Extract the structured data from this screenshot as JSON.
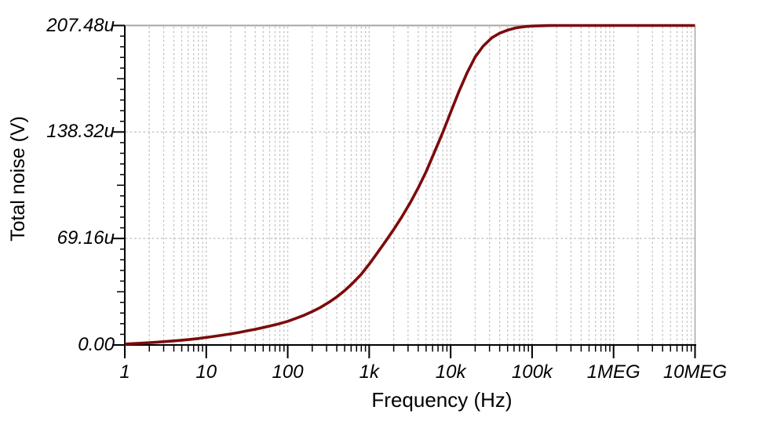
{
  "window": {
    "background": "#ffffff"
  },
  "colors": {
    "curve": "#7c0b0b",
    "grid": "#c3c3c3",
    "border": "#a6a6a6",
    "axis": "#000000",
    "text": "#000000",
    "background": "#ffffff"
  },
  "chart_data": {
    "type": "line",
    "title": "",
    "xlabel": "Frequency (Hz)",
    "ylabel": "Total noise (V)",
    "x_scale": "log",
    "y_scale": "linear",
    "xlim": [
      1,
      10000000
    ],
    "ylim_uV": [
      0,
      207.48
    ],
    "grid": {
      "vertical_log_minor": true,
      "horizontal_major": true,
      "style": "dashed",
      "shown": true
    },
    "legend": "none",
    "x_ticks": [
      {
        "value": 1,
        "label": "1"
      },
      {
        "value": 10,
        "label": "10"
      },
      {
        "value": 100,
        "label": "100"
      },
      {
        "value": 1000,
        "label": "1k"
      },
      {
        "value": 10000,
        "label": "10k"
      },
      {
        "value": 100000,
        "label": "100k"
      },
      {
        "value": 1000000,
        "label": "1MEG"
      },
      {
        "value": 10000000,
        "label": "10MEG"
      }
    ],
    "y_ticks": [
      {
        "value_uV": 0,
        "label": "0.00"
      },
      {
        "value_uV": 69.16,
        "label": "69.16u"
      },
      {
        "value_uV": 138.32,
        "label": "138.32u"
      },
      {
        "value_uV": 207.48,
        "label": "207.48u"
      }
    ],
    "series": [
      {
        "name": "Total noise",
        "color": "#7c0b0b",
        "points_f_uV": [
          [
            1,
            0.6
          ],
          [
            1.3,
            0.9
          ],
          [
            1.6,
            1.15
          ],
          [
            2,
            1.5
          ],
          [
            2.5,
            1.85
          ],
          [
            3.2,
            2.25
          ],
          [
            4,
            2.65
          ],
          [
            5,
            3.1
          ],
          [
            6.3,
            3.6
          ],
          [
            8,
            4.2
          ],
          [
            10,
            4.9
          ],
          [
            12.5,
            5.6
          ],
          [
            16,
            6.4
          ],
          [
            20,
            7.2
          ],
          [
            25,
            8.1
          ],
          [
            32,
            9.2
          ],
          [
            40,
            10.2
          ],
          [
            50,
            11.3
          ],
          [
            63,
            12.5
          ],
          [
            80,
            13.9
          ],
          [
            100,
            15.4
          ],
          [
            125,
            17.2
          ],
          [
            160,
            19.4
          ],
          [
            200,
            21.7
          ],
          [
            250,
            24.3
          ],
          [
            320,
            27.7
          ],
          [
            400,
            31.2
          ],
          [
            500,
            35.3
          ],
          [
            630,
            40.2
          ],
          [
            800,
            46
          ],
          [
            1000,
            52.5
          ],
          [
            1250,
            59.5
          ],
          [
            1600,
            67.5
          ],
          [
            2000,
            75
          ],
          [
            2500,
            83
          ],
          [
            3200,
            92.5
          ],
          [
            4000,
            102
          ],
          [
            5000,
            112.5
          ],
          [
            6300,
            125
          ],
          [
            8000,
            138
          ],
          [
            10000,
            151
          ],
          [
            12500,
            164
          ],
          [
            16000,
            177
          ],
          [
            20000,
            187
          ],
          [
            25000,
            194
          ],
          [
            32000,
            199.5
          ],
          [
            40000,
            202.5
          ],
          [
            50000,
            204.5
          ],
          [
            63000,
            205.9
          ],
          [
            80000,
            206.7
          ],
          [
            100000,
            207.1
          ],
          [
            125000,
            207.3
          ],
          [
            160000,
            207.44
          ],
          [
            200000,
            207.48
          ],
          [
            400000,
            207.48
          ],
          [
            1000000,
            207.48
          ],
          [
            2000000,
            207.48
          ],
          [
            4000000,
            207.48
          ],
          [
            10000000,
            207.48
          ]
        ]
      }
    ]
  }
}
